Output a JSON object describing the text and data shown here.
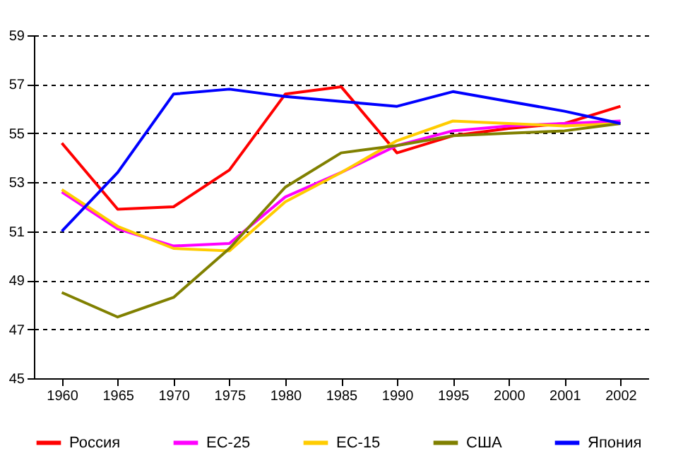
{
  "chart_data": {
    "type": "line",
    "categories": [
      "1960",
      "1965",
      "1970",
      "1975",
      "1980",
      "1985",
      "1990",
      "1995",
      "2000",
      "2001",
      "2002"
    ],
    "ylim": [
      45,
      59
    ],
    "yticks": [
      45,
      47,
      49,
      51,
      53,
      55,
      57,
      59
    ],
    "grid": "y",
    "legend": "bottom",
    "marker": "none",
    "line_style": "solid",
    "series": [
      {
        "name": "Россия",
        "color": "#ff0000",
        "values": [
          54.6,
          51.9,
          52.0,
          53.5,
          56.6,
          56.9,
          54.2,
          54.9,
          55.2,
          55.4,
          56.1
        ]
      },
      {
        "name": "ЕС-25",
        "color": "#ff00ff",
        "values": [
          52.6,
          51.1,
          50.4,
          50.5,
          52.4,
          53.4,
          54.5,
          55.1,
          55.3,
          55.4,
          55.5
        ]
      },
      {
        "name": "ЕС-15",
        "color": "#ffcc00",
        "values": [
          52.7,
          51.2,
          50.3,
          50.2,
          52.2,
          53.4,
          54.7,
          55.5,
          55.4,
          55.3,
          55.4
        ]
      },
      {
        "name": "США",
        "color": "#808000",
        "values": [
          48.5,
          47.5,
          48.3,
          50.3,
          52.8,
          54.2,
          54.5,
          54.9,
          55.0,
          55.1,
          55.4
        ]
      },
      {
        "name": "Япония",
        "color": "#0000ff",
        "values": [
          51.0,
          53.4,
          56.6,
          56.8,
          56.5,
          56.3,
          56.1,
          56.7,
          56.3,
          55.9,
          55.4
        ]
      }
    ]
  }
}
